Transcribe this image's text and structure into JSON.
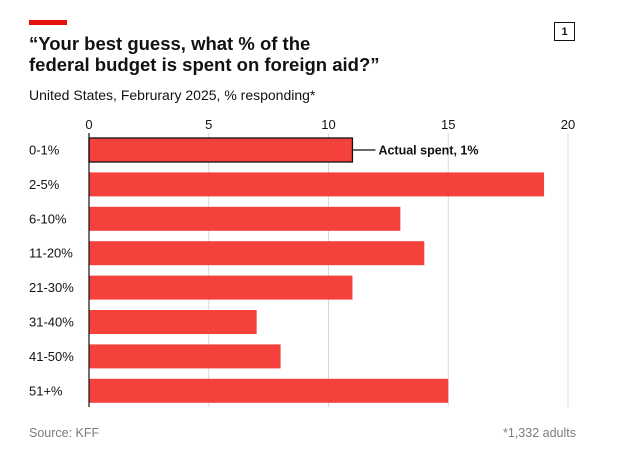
{
  "page": {
    "badge": "1",
    "title_line1": "“Your best guess, what % of the",
    "title_line2": "federal budget is spent on foreign aid?”",
    "subtitle": "United States, Februrary 2025, % responding*",
    "source": "Source: KFF",
    "footnote": "*1,332 adults",
    "accent_color": "#e3120b",
    "bar_color": "#f5413b"
  },
  "chart_data": {
    "type": "bar",
    "orientation": "horizontal",
    "categories": [
      "0-1%",
      "2-5%",
      "6-10%",
      "11-20%",
      "21-30%",
      "31-40%",
      "41-50%",
      "51+%"
    ],
    "values": [
      11,
      19,
      13,
      14,
      11,
      7,
      8,
      15
    ],
    "xlim": [
      0,
      20
    ],
    "xticks": [
      0,
      5,
      10,
      15,
      20
    ],
    "grid": true,
    "highlight_index": 0,
    "annotation": "Actual spent, 1%"
  }
}
